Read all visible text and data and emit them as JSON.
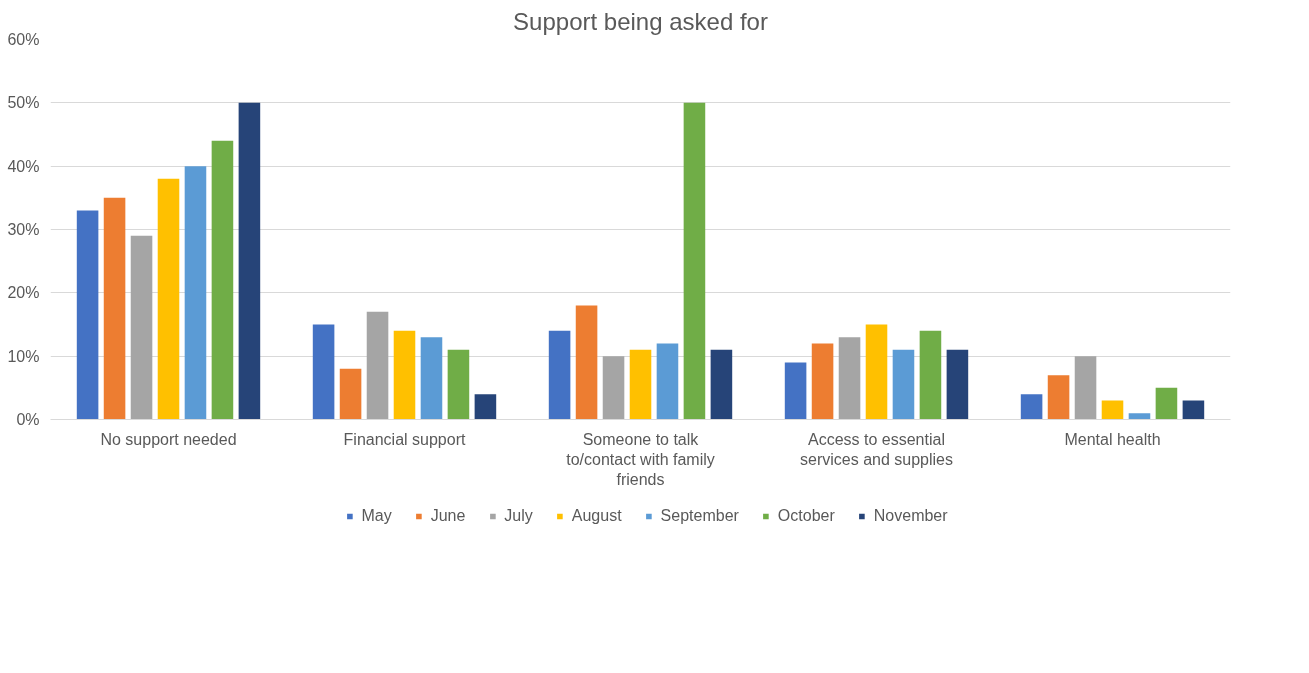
{
  "chart_data": {
    "type": "bar",
    "title": "Support being asked for",
    "categories": [
      "No support needed",
      "Financial support",
      "Someone to talk to/contact with family friends",
      "Access to essential services and supplies",
      "Mental health"
    ],
    "series": [
      {
        "name": "May",
        "color": "#4472c4",
        "values": [
          33,
          15,
          14,
          9,
          4
        ]
      },
      {
        "name": "June",
        "color": "#ed7d31",
        "values": [
          35,
          8,
          18,
          12,
          7
        ]
      },
      {
        "name": "July",
        "color": "#a5a5a5",
        "values": [
          29,
          17,
          10,
          13,
          10
        ]
      },
      {
        "name": "August",
        "color": "#ffc000",
        "values": [
          38,
          14,
          11,
          15,
          3
        ]
      },
      {
        "name": "September",
        "color": "#5b9bd5",
        "values": [
          40,
          13,
          12,
          11,
          1
        ]
      },
      {
        "name": "October",
        "color": "#70ad47",
        "values": [
          44,
          11,
          50,
          14,
          5
        ]
      },
      {
        "name": "November",
        "color": "#264478",
        "values": [
          50,
          4,
          11,
          11,
          3
        ]
      }
    ],
    "ylim": [
      0,
      60
    ],
    "yticks": [
      {
        "value": 0,
        "label": "0%"
      },
      {
        "value": 10,
        "label": "10%"
      },
      {
        "value": 20,
        "label": "20%"
      },
      {
        "value": 30,
        "label": "30%"
      },
      {
        "value": 40,
        "label": "40%"
      },
      {
        "value": 50,
        "label": "50%"
      },
      {
        "value": 60,
        "label": "60%"
      }
    ],
    "grid": "y",
    "legend": "bottom"
  }
}
